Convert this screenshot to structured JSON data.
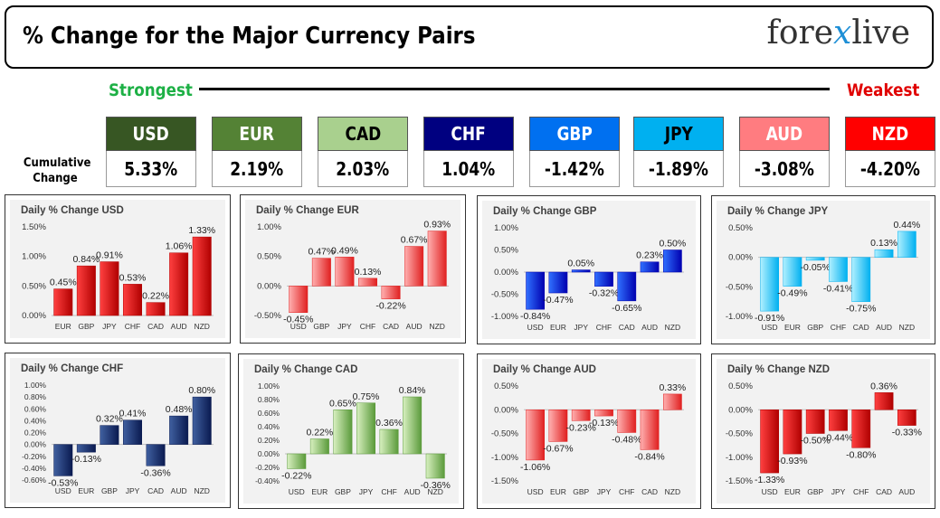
{
  "header": {
    "title": "% Change for the Major Currency Pairs",
    "logo_left": "fore",
    "logo_x": "x",
    "logo_right": "live"
  },
  "strongest_label": "Strongest",
  "weakest_label": "Weakest",
  "cumulative_label": "Cumulative Change",
  "currencies": [
    {
      "code": "USD",
      "value": "5.33%",
      "bg": "#375623",
      "fg": "#ffffff"
    },
    {
      "code": "EUR",
      "value": "2.19%",
      "bg": "#548235",
      "fg": "#ffffff"
    },
    {
      "code": "CAD",
      "value": "2.03%",
      "bg": "#a9d08e",
      "fg": "#000000"
    },
    {
      "code": "CHF",
      "value": "1.04%",
      "bg": "#000080",
      "fg": "#ffffff"
    },
    {
      "code": "GBP",
      "value": "-1.42%",
      "bg": "#0070f0",
      "fg": "#ffffff"
    },
    {
      "code": "JPY",
      "value": "-1.89%",
      "bg": "#00b0f0",
      "fg": "#000000"
    },
    {
      "code": "AUD",
      "value": "-3.08%",
      "bg": "#ff7c80",
      "fg": "#ffffff"
    },
    {
      "code": "NZD",
      "value": "-4.20%",
      "bg": "#ff0000",
      "fg": "#ffffff"
    }
  ],
  "chart_data": [
    {
      "type": "bar",
      "title": "Daily % Change USD",
      "categories": [
        "EUR",
        "GBP",
        "JPY",
        "CHF",
        "CAD",
        "AUD",
        "NZD"
      ],
      "values": [
        0.45,
        0.84,
        0.91,
        0.53,
        0.22,
        1.06,
        1.33
      ],
      "ylim": [
        0,
        1.5
      ],
      "ticks": [
        0,
        0.5,
        1.0,
        1.5
      ],
      "tick_labels": [
        "0.00%",
        "0.50%",
        "1.00%",
        "1.50%"
      ],
      "labels": [
        "0.45%",
        "0.84%",
        "0.91%",
        "0.53%",
        "0.22%",
        "1.06%",
        "1.33%"
      ],
      "color": "red"
    },
    {
      "type": "bar",
      "title": "Daily % Change EUR",
      "categories": [
        "USD",
        "GBP",
        "JPY",
        "CHF",
        "CAD",
        "AUD",
        "NZD"
      ],
      "values": [
        -0.45,
        0.47,
        0.49,
        0.13,
        -0.22,
        0.67,
        0.93
      ],
      "ylim": [
        -0.5,
        1.0
      ],
      "ticks": [
        -0.5,
        0,
        0.5,
        1.0
      ],
      "tick_labels": [
        "-0.50%",
        "0.00%",
        "0.50%",
        "1.00%"
      ],
      "labels": [
        "-0.45%",
        "0.47%",
        "0.49%",
        "0.13%",
        "-0.22%",
        "0.67%",
        "0.93%"
      ],
      "color": "salmon"
    },
    {
      "type": "bar",
      "title": "Daily % Change GBP",
      "categories": [
        "USD",
        "EUR",
        "JPY",
        "CHF",
        "CAD",
        "AUD",
        "NZD"
      ],
      "values": [
        -0.84,
        -0.47,
        0.05,
        -0.32,
        -0.65,
        0.23,
        0.5
      ],
      "ylim": [
        -1.0,
        1.0
      ],
      "ticks": [
        -1.0,
        -0.5,
        0,
        0.5,
        1.0
      ],
      "tick_labels": [
        "-1.00%",
        "-0.50%",
        "0.00%",
        "0.50%",
        "1.00%"
      ],
      "labels": [
        "-0.84%",
        "-0.47%",
        "0.05%",
        "-0.32%",
        "-0.65%",
        "0.23%",
        "0.50%"
      ],
      "color": "blue"
    },
    {
      "type": "bar",
      "title": "Daily % Change JPY",
      "categories": [
        "USD",
        "EUR",
        "GBP",
        "CHF",
        "CAD",
        "AUD",
        "NZD"
      ],
      "values": [
        -0.91,
        -0.49,
        -0.05,
        -0.41,
        -0.75,
        0.13,
        0.44
      ],
      "ylim": [
        -1.0,
        0.5
      ],
      "ticks": [
        -1.0,
        -0.5,
        0,
        0.5
      ],
      "tick_labels": [
        "-1.00%",
        "-0.50%",
        "0.00%",
        "0.50%"
      ],
      "labels": [
        "-0.91%",
        "-0.49%",
        "-0.05%",
        "-0.41%",
        "-0.75%",
        "0.13%",
        "0.44%"
      ],
      "color": "cyan"
    },
    {
      "type": "bar",
      "title": "Daily % Change CHF",
      "categories": [
        "USD",
        "EUR",
        "GBP",
        "JPY",
        "CAD",
        "AUD",
        "NZD"
      ],
      "values": [
        -0.53,
        -0.13,
        0.32,
        0.41,
        -0.36,
        0.48,
        0.8
      ],
      "ylim": [
        -0.6,
        1.0
      ],
      "ticks": [
        -0.6,
        -0.4,
        -0.2,
        0,
        0.2,
        0.4,
        0.6,
        0.8,
        1.0
      ],
      "tick_labels": [
        "-0.60%",
        "-0.40%",
        "-0.20%",
        "0.00%",
        "0.20%",
        "0.40%",
        "0.60%",
        "0.80%",
        "1.00%"
      ],
      "labels": [
        "-0.53%",
        "-0.13%",
        "0.32%",
        "0.41%",
        "-0.36%",
        "0.48%",
        "0.80%"
      ],
      "color": "navy"
    },
    {
      "type": "bar",
      "title": "Daily % Change CAD",
      "categories": [
        "USD",
        "EUR",
        "GBP",
        "JPY",
        "CHF",
        "AUD",
        "NZD"
      ],
      "values": [
        -0.22,
        0.22,
        0.65,
        0.75,
        0.36,
        0.84,
        -0.36
      ],
      "ylim": [
        -0.4,
        1.0
      ],
      "ticks": [
        -0.4,
        -0.2,
        0,
        0.2,
        0.4,
        0.6,
        0.8,
        1.0
      ],
      "tick_labels": [
        "-0.40%",
        "-0.20%",
        "0.00%",
        "0.20%",
        "0.40%",
        "0.60%",
        "0.80%",
        "1.00%"
      ],
      "labels": [
        "-0.22%",
        "0.22%",
        "0.65%",
        "0.75%",
        "0.36%",
        "0.84%",
        "-0.36%"
      ],
      "color": "green"
    },
    {
      "type": "bar",
      "title": "Daily % Change AUD",
      "categories": [
        "USD",
        "EUR",
        "GBP",
        "JPY",
        "CHF",
        "CAD",
        "NZD"
      ],
      "values": [
        -1.06,
        -0.67,
        -0.23,
        -0.13,
        -0.48,
        -0.84,
        0.33
      ],
      "ylim": [
        -1.5,
        0.5
      ],
      "ticks": [
        -1.5,
        -1.0,
        -0.5,
        0,
        0.5
      ],
      "tick_labels": [
        "-1.50%",
        "-1.00%",
        "-0.50%",
        "0.00%",
        "0.50%"
      ],
      "labels": [
        "-1.06%",
        "-0.67%",
        "-0.23%",
        "-0.13%",
        "-0.48%",
        "-0.84%",
        "0.33%"
      ],
      "color": "salmon"
    },
    {
      "type": "bar",
      "title": "Daily % Change NZD",
      "categories": [
        "USD",
        "EUR",
        "GBP",
        "JPY",
        "CHF",
        "CAD",
        "AUD"
      ],
      "values": [
        -1.33,
        -0.93,
        -0.5,
        -0.44,
        -0.8,
        0.36,
        -0.33
      ],
      "ylim": [
        -1.5,
        0.5
      ],
      "ticks": [
        -1.5,
        -1.0,
        -0.5,
        0,
        0.5
      ],
      "tick_labels": [
        "-1.50%",
        "-1.00%",
        "-0.50%",
        "0.00%",
        "0.50%"
      ],
      "labels": [
        "-1.33%",
        "-0.93%",
        "-0.50%",
        "-0.44%",
        "-0.80%",
        "0.36%",
        "-0.33%"
      ],
      "color": "red"
    }
  ],
  "palette": {
    "red": [
      "#ff4040",
      "#b00000"
    ],
    "salmon": [
      "#ffb0b0",
      "#e02020"
    ],
    "blue": [
      "#3070ff",
      "#0000b0"
    ],
    "cyan": [
      "#b0f0ff",
      "#00b0f0"
    ],
    "navy": [
      "#4060a0",
      "#0a1a50"
    ],
    "green": [
      "#d8f0c0",
      "#5a9a3a"
    ]
  }
}
